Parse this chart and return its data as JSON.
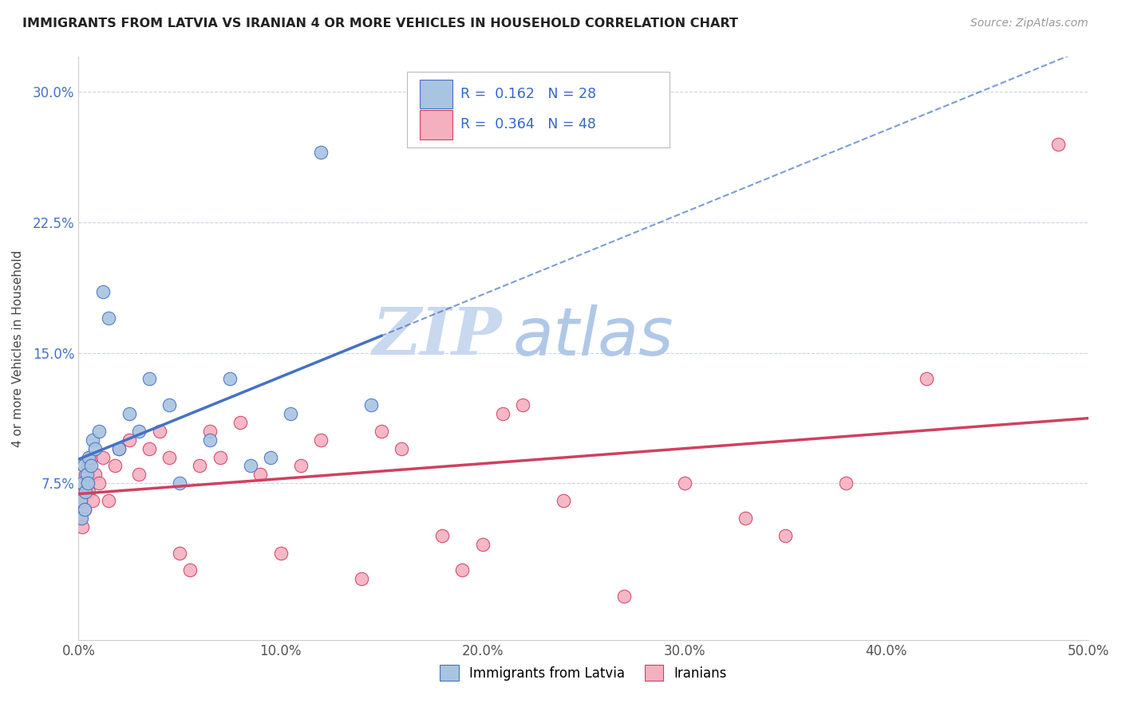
{
  "title": "IMMIGRANTS FROM LATVIA VS IRANIAN 4 OR MORE VEHICLES IN HOUSEHOLD CORRELATION CHART",
  "source": "Source: ZipAtlas.com",
  "ylabel": "4 or more Vehicles in Household",
  "xlim": [
    0.0,
    50.0
  ],
  "ylim": [
    -1.5,
    32.0
  ],
  "y_ticks": [
    7.5,
    15.0,
    22.5,
    30.0
  ],
  "x_ticks": [
    0,
    10,
    20,
    30,
    40,
    50
  ],
  "legend_labels": [
    "Immigrants from Latvia",
    "Iranians"
  ],
  "legend_r_n": [
    {
      "R": "0.162",
      "N": "28"
    },
    {
      "R": "0.364",
      "N": "48"
    }
  ],
  "scatter_latvia_x": [
    0.1,
    0.15,
    0.2,
    0.25,
    0.3,
    0.35,
    0.4,
    0.45,
    0.5,
    0.6,
    0.7,
    0.8,
    1.0,
    1.2,
    1.5,
    2.0,
    2.5,
    3.0,
    3.5,
    4.5,
    5.0,
    6.5,
    7.5,
    8.5,
    9.5,
    10.5,
    12.0,
    14.5
  ],
  "scatter_latvia_y": [
    6.5,
    5.5,
    7.5,
    8.5,
    6.0,
    7.0,
    8.0,
    7.5,
    9.0,
    8.5,
    10.0,
    9.5,
    10.5,
    18.5,
    17.0,
    9.5,
    11.5,
    10.5,
    13.5,
    12.0,
    7.5,
    10.0,
    13.5,
    8.5,
    9.0,
    11.5,
    26.5,
    12.0
  ],
  "scatter_iranian_x": [
    0.1,
    0.15,
    0.2,
    0.25,
    0.3,
    0.35,
    0.4,
    0.45,
    0.5,
    0.6,
    0.7,
    0.8,
    1.0,
    1.2,
    1.5,
    1.8,
    2.0,
    2.5,
    3.0,
    3.5,
    4.0,
    4.5,
    5.0,
    5.5,
    6.0,
    6.5,
    7.0,
    8.0,
    9.0,
    10.0,
    11.0,
    12.0,
    14.0,
    15.0,
    16.0,
    18.0,
    19.0,
    20.0,
    21.0,
    22.0,
    24.0,
    27.0,
    30.0,
    33.0,
    35.0,
    38.0,
    42.0,
    48.5
  ],
  "scatter_iranian_y": [
    5.5,
    6.5,
    5.0,
    7.0,
    6.0,
    8.0,
    7.5,
    8.5,
    7.0,
    9.0,
    6.5,
    8.0,
    7.5,
    9.0,
    6.5,
    8.5,
    9.5,
    10.0,
    8.0,
    9.5,
    10.5,
    9.0,
    3.5,
    2.5,
    8.5,
    10.5,
    9.0,
    11.0,
    8.0,
    3.5,
    8.5,
    10.0,
    2.0,
    10.5,
    9.5,
    4.5,
    2.5,
    4.0,
    11.5,
    12.0,
    6.5,
    1.0,
    7.5,
    5.5,
    4.5,
    7.5,
    13.5,
    27.0
  ],
  "color_latvia": "#a8c4e0",
  "color_iranian": "#f5b0c0",
  "color_latvia_line": "#4472c4",
  "color_iranian_line": "#d04060",
  "watermark_text": "ZIP",
  "watermark_text2": "atlas",
  "watermark_color1": "#c8d8ee",
  "watermark_color2": "#b0c8e8",
  "background_color": "#ffffff",
  "grid_color": "#c8d4e8"
}
